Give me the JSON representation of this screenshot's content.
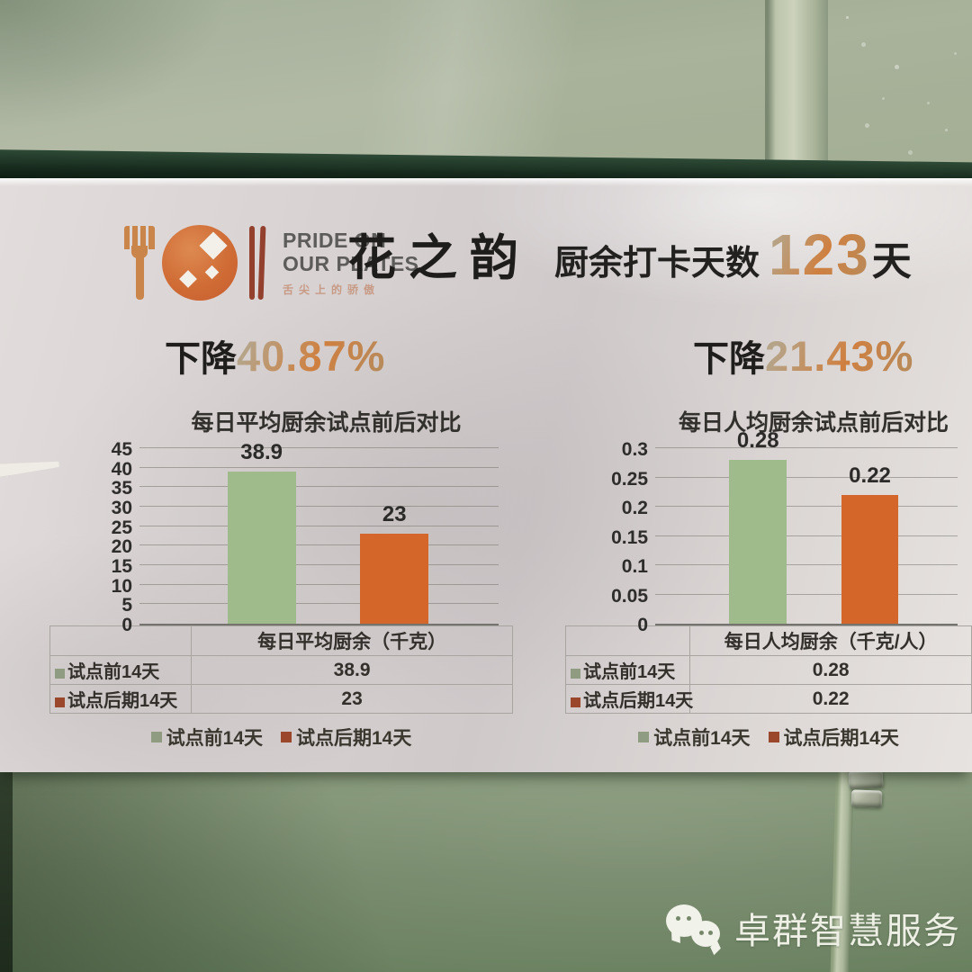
{
  "scene": {
    "watermark_text": "卓群智慧服务"
  },
  "poster": {
    "brand": {
      "line1": "PRIDE ON",
      "line2": "OUR PLATES",
      "tagline": "舌尖上的骄傲"
    },
    "title": "花之韵",
    "checkin_label": "厨余打卡天数",
    "checkin_value": "123",
    "checkin_unit": "天",
    "sections": [
      {
        "drop_label": "下降",
        "drop_value": "40.87%"
      },
      {
        "drop_label": "下降",
        "drop_value": "21.43%"
      }
    ]
  },
  "chart_data": [
    {
      "type": "bar",
      "title": "每日平均厨余试点前后对比",
      "categories": [
        "每日平均厨余（千克）"
      ],
      "series": [
        {
          "name": "试点前14天",
          "values": [
            38.9
          ],
          "label": "38.9",
          "color": "#a0bb8b",
          "marker": "#8f9c82"
        },
        {
          "name": "试点后期14天",
          "values": [
            23
          ],
          "label": "23",
          "color": "#d4662a",
          "marker": "#9b472b"
        }
      ],
      "xlabel": "每日平均厨余（千克）",
      "ylabel": "",
      "ylim": [
        0,
        45
      ],
      "yticks": [
        "0",
        "5",
        "10",
        "15",
        "20",
        "25",
        "30",
        "35",
        "40",
        "45"
      ],
      "grid": true,
      "legend_position": "bottom",
      "has_data_table": true
    },
    {
      "type": "bar",
      "title": "每日人均厨余试点前后对比",
      "categories": [
        "每日人均厨余（千克/人）"
      ],
      "series": [
        {
          "name": "试点前14天",
          "values": [
            0.28
          ],
          "label": "0.28",
          "color": "#a0bb8b",
          "marker": "#8f9c82"
        },
        {
          "name": "试点后期14天",
          "values": [
            0.22
          ],
          "label": "0.22",
          "color": "#d4662a",
          "marker": "#9b472b"
        }
      ],
      "xlabel": "每日人均厨余（千克/人）",
      "ylabel": "",
      "ylim": [
        0,
        0.3
      ],
      "yticks": [
        "0",
        "0.05",
        "0.1",
        "0.15",
        "0.2",
        "0.25",
        "0.3"
      ],
      "grid": true,
      "legend_position": "bottom",
      "has_data_table": true
    }
  ],
  "colors": {
    "bar_before": "#a0bb8b",
    "bar_after": "#d4662a",
    "marker_before": "#8f9c82",
    "marker_after": "#9b472b",
    "accent_start": "#b5a488",
    "accent_end": "#cf8040",
    "cabinet_green": "#758869"
  }
}
